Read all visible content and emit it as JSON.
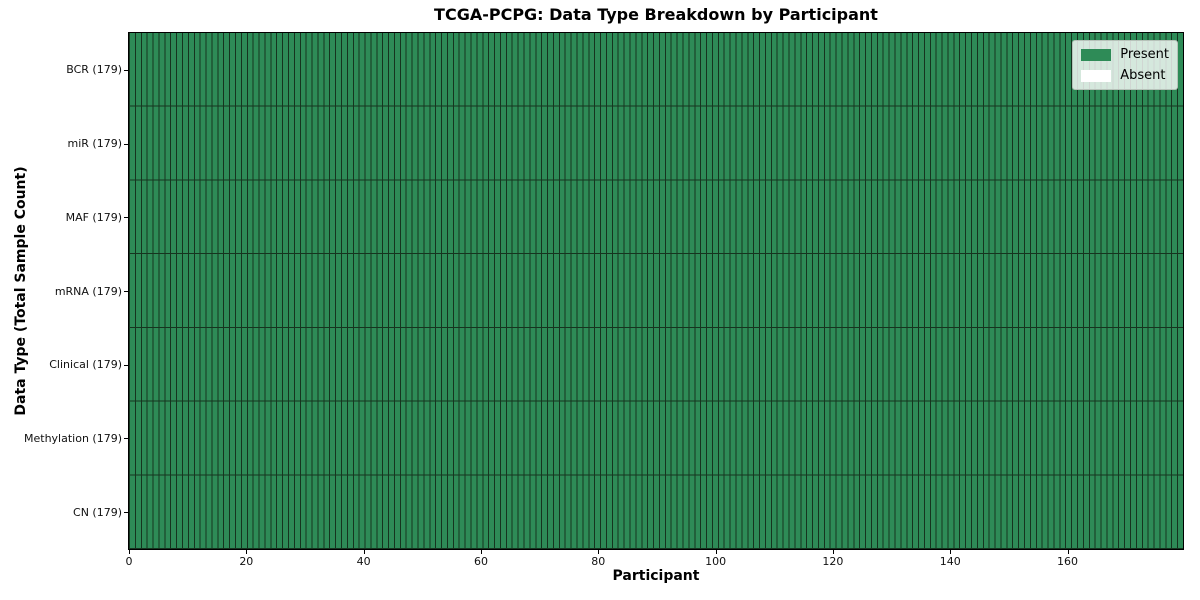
{
  "chart_data": {
    "type": "heatmap",
    "title": "TCGA-PCPG: Data Type Breakdown by Participant",
    "xlabel": "Participant",
    "ylabel": "Data Type (Total Sample Count)",
    "n_participants": 179,
    "x_ticks": [
      0,
      20,
      40,
      60,
      80,
      100,
      120,
      140,
      160
    ],
    "xlim": [
      0,
      180
    ],
    "rows": [
      {
        "label": "BCR (179)",
        "data_type": "BCR",
        "total_samples": 179,
        "present": 179,
        "absent": 0
      },
      {
        "label": "miR (179)",
        "data_type": "miR",
        "total_samples": 179,
        "present": 179,
        "absent": 0
      },
      {
        "label": "MAF (179)",
        "data_type": "MAF",
        "total_samples": 179,
        "present": 179,
        "absent": 0
      },
      {
        "label": "mRNA (179)",
        "data_type": "mRNA",
        "total_samples": 179,
        "present": 179,
        "absent": 0
      },
      {
        "label": "Clinical (179)",
        "data_type": "Clinical",
        "total_samples": 179,
        "present": 179,
        "absent": 0
      },
      {
        "label": "Methylation (179)",
        "data_type": "Methylation",
        "total_samples": 179,
        "present": 179,
        "absent": 0
      },
      {
        "label": "CN (179)",
        "data_type": "CN",
        "total_samples": 179,
        "present": 179,
        "absent": 0
      }
    ],
    "legend": {
      "position": "upper right",
      "entries": [
        {
          "label": "Present",
          "color": "#2e8b57"
        },
        {
          "label": "Absent",
          "color": "#ffffff"
        }
      ]
    },
    "colors": {
      "present": "#2e8b57",
      "absent": "#ffffff",
      "grid_line": "#16341f",
      "background": "#ffffff"
    }
  }
}
